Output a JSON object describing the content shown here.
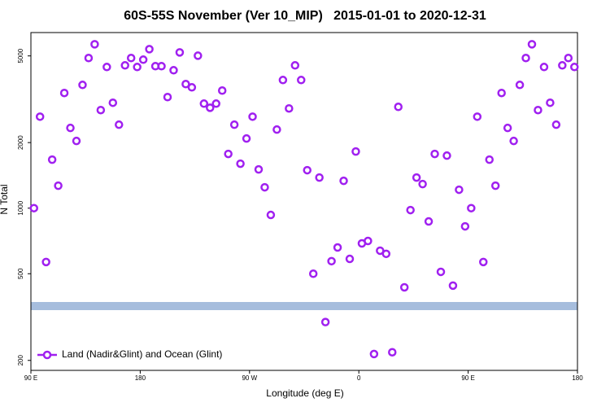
{
  "chart_data": {
    "type": "scatter",
    "title": "60S-55S November (Ver 10_MIP)   2015-01-01 to 2020-12-31",
    "x_label": "Longitude (deg E)",
    "y_label": "N Total",
    "log_y": true,
    "legend_position": "lower left",
    "xlim": [
      -270,
      180
    ],
    "xticks": [
      {
        "value": -270,
        "label": "90 E"
      },
      {
        "value": -180,
        "label": "180"
      },
      {
        "value": -90,
        "label": "90 W"
      },
      0,
      {
        "value": 90,
        "label": "90 E"
      },
      180
    ],
    "ylim": [
      180,
      6400
    ],
    "yticks": [
      200,
      500,
      1000,
      2000,
      5000
    ],
    "series": [
      {
        "name": "Land (Nadir&Glint) and Ocean (Glint)",
        "color": "#a020f0",
        "x": [
          -267.5,
          -262.5,
          -257.5,
          -252.5,
          -247.5,
          -242.5,
          -237.5,
          -232.5,
          -227.5,
          -222.5,
          -217.5,
          -212.5,
          -207.5,
          -202.5,
          -197.5,
          -192.5,
          -187.5,
          -182.5,
          -177.5,
          -172.5,
          -167.5,
          -162.5,
          -157.5,
          -152.5,
          -147.5,
          -142.5,
          -137.5,
          -132.5,
          -127.5,
          -122.5,
          -117.5,
          -112.5,
          -107.5,
          -102.5,
          -97.5,
          -92.5,
          -87.5,
          -82.5,
          -77.5,
          -72.5,
          -67.5,
          -62.5,
          -57.5,
          -52.5,
          -47.5,
          -42.5,
          -37.5,
          -32.5,
          -27.5,
          -22.5,
          -17.5,
          -12.5,
          -7.5,
          -2.5,
          2.5,
          7.5,
          12.5,
          17.5,
          22.5,
          27.5,
          32.5,
          37.5,
          42.5,
          47.5,
          52.5,
          57.5,
          62.5,
          67.5,
          72.5,
          77.5,
          82.5,
          87.5,
          92.5,
          97.5,
          102.5,
          107.5,
          112.5,
          117.5,
          122.5,
          127.5,
          132.5,
          137.5,
          142.5,
          147.5,
          152.5,
          157.5,
          162.5,
          167.5,
          172.5,
          177.5
        ],
        "values": [
          1000,
          2630,
          566,
          1670,
          1268,
          3379,
          2335,
          2035,
          3680,
          4890,
          5655,
          2820,
          4447,
          3048,
          2417,
          4525,
          4890,
          4447,
          4805,
          5370,
          4486,
          4486,
          3236,
          4297,
          5190,
          3713,
          3587,
          5012,
          3020,
          2891,
          3020,
          3466,
          1774,
          2417,
          1600,
          2088,
          2630,
          1506,
          1247,
          931,
          2295,
          3876,
          2869,
          4525,
          3876,
          1494,
          500,
          1382,
          300,
          571,
          660,
          1335,
          585,
          1820,
          689,
          707,
          214,
          638,
          617,
          218,
          2918,
          433,
          980,
          1382,
          1290,
          869,
          1774,
          510,
          1743,
          441,
          1215,
          825,
          1000,
          2630,
          566,
          1670,
          1268,
          3379,
          2335,
          2035,
          3680,
          4890,
          5655,
          2820,
          4447,
          3048,
          2417,
          4525,
          4890,
          4447
        ]
      }
    ]
  }
}
